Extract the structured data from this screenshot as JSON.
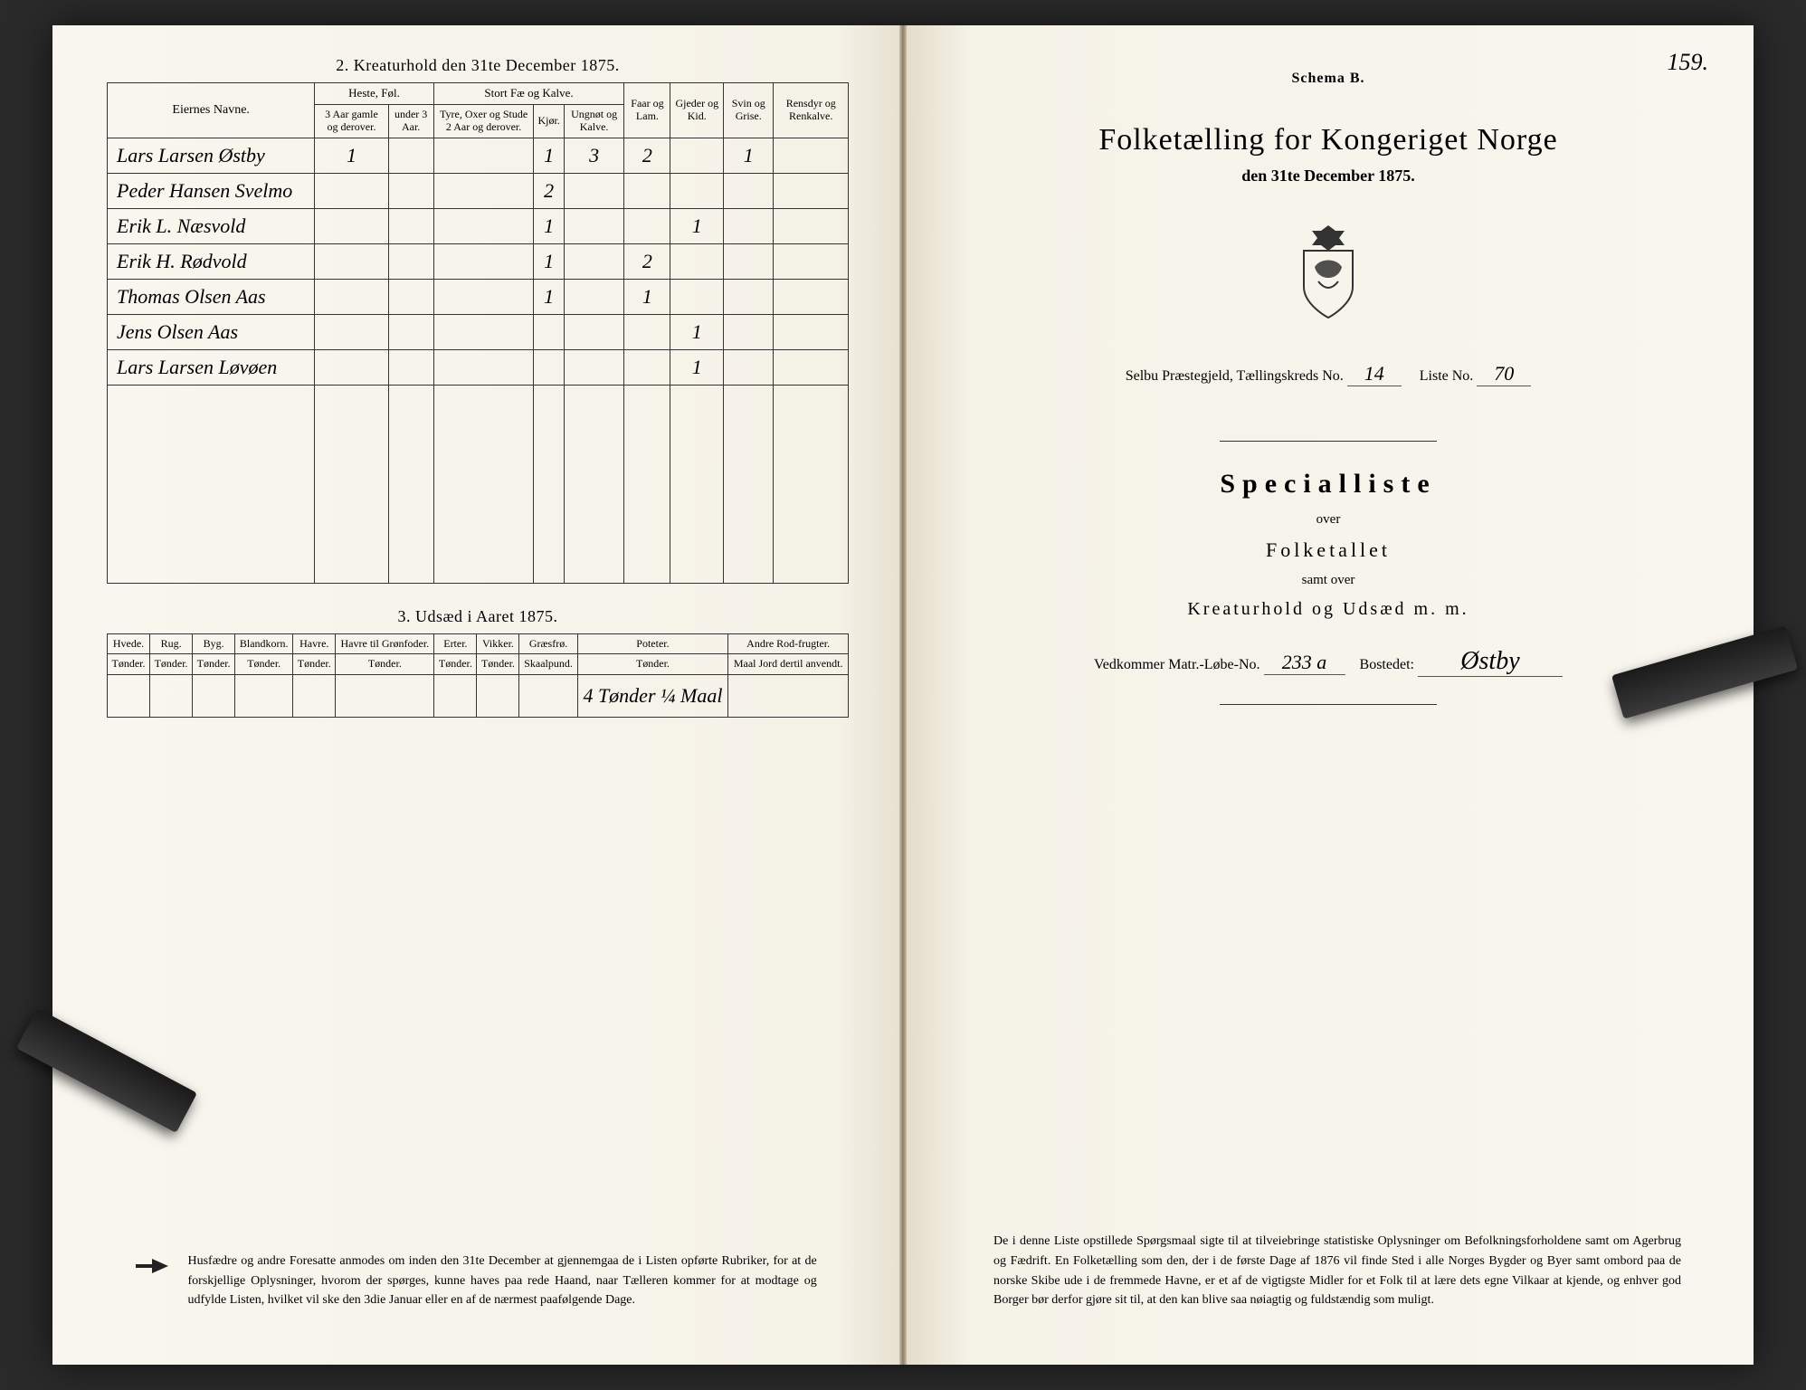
{
  "left": {
    "kreatur_title": "2.  Kreaturhold den 31te December 1875.",
    "udsaed_title": "3.  Udsæd i Aaret 1875.",
    "kreatur": {
      "col_names": "Eiernes Navne.",
      "group_heste": "Heste, Føl.",
      "group_stort": "Stort Fæ og Kalve.",
      "col_heste_a": "3 Aar gamle og derover.",
      "col_heste_b": "under 3 Aar.",
      "col_stort_a": "Tyre, Oxer og Stude 2 Aar og derover.",
      "col_stort_b": "Kjør.",
      "col_stort_c": "Ungnøt og Kalve.",
      "col_faar": "Faar og Lam.",
      "col_gjed": "Gjeder og Kid.",
      "col_svin": "Svin og Grise.",
      "col_rens": "Rensdyr og Renkalve.",
      "rows": [
        {
          "name": "Lars Larsen Østby",
          "heste_a": "1",
          "heste_b": "",
          "stort_a": "",
          "stort_b": "1",
          "stort_c": "3",
          "faar": "2",
          "gjed": "",
          "svin": "1",
          "rens": ""
        },
        {
          "name": "Peder Hansen Svelmo",
          "heste_a": "",
          "heste_b": "",
          "stort_a": "",
          "stort_b": "2",
          "stort_c": "",
          "faar": "",
          "gjed": "",
          "svin": "",
          "rens": ""
        },
        {
          "name": "Erik L. Næsvold",
          "heste_a": "",
          "heste_b": "",
          "stort_a": "",
          "stort_b": "1",
          "stort_c": "",
          "faar": "",
          "gjed": "1",
          "svin": "",
          "rens": ""
        },
        {
          "name": "Erik H. Rødvold",
          "heste_a": "",
          "heste_b": "",
          "stort_a": "",
          "stort_b": "1",
          "stort_c": "",
          "faar": "2",
          "gjed": "",
          "svin": "",
          "rens": ""
        },
        {
          "name": "Thomas Olsen Aas",
          "heste_a": "",
          "heste_b": "",
          "stort_a": "",
          "stort_b": "1",
          "stort_c": "",
          "faar": "1",
          "gjed": "",
          "svin": "",
          "rens": ""
        },
        {
          "name": "Jens Olsen Aas",
          "heste_a": "",
          "heste_b": "",
          "stort_a": "",
          "stort_b": "",
          "stort_c": "",
          "faar": "",
          "gjed": "1",
          "svin": "",
          "rens": ""
        },
        {
          "name": "Lars Larsen Løvøen",
          "heste_a": "",
          "heste_b": "",
          "stort_a": "",
          "stort_b": "",
          "stort_c": "",
          "faar": "",
          "gjed": "1",
          "svin": "",
          "rens": ""
        }
      ]
    },
    "udsaed": {
      "cols": [
        "Hvede.",
        "Rug.",
        "Byg.",
        "Blandkorn.",
        "Havre.",
        "Havre til Grønfoder.",
        "Erter.",
        "Vikker.",
        "Græsfrø.",
        "Poteter.",
        "Andre Rod-frugter."
      ],
      "unit": "Tønder.",
      "unit_graes": "Skaalpund.",
      "unit_rod": "Maal Jord dertil anvendt.",
      "poteter_value": "4 Tønder ¼ Maal"
    },
    "footnote": "Husfædre og andre Foresatte anmodes om inden den 31te December at gjennemgaa de i Listen opførte Rubriker, for at de forskjellige Oplysninger, hvorom der spørges, kunne haves paa rede Haand, naar Tælleren kommer for at modtage og udfylde Listen, hvilket vil ske den 3die Januar eller en af de nærmest paafølgende Dage."
  },
  "right": {
    "page_no": "159.",
    "schema": "Schema B.",
    "main_title": "Folketælling for Kongeriget Norge",
    "subtitle": "den 31te December 1875.",
    "meta_prefix": "Selbu Præstegjeld,  Tællingskreds No.",
    "kreds_no": "14",
    "liste_label": "Liste No.",
    "liste_no": "70",
    "specialliste": "Specialliste",
    "over": "over",
    "folketallet": "Folketallet",
    "samt_over": "samt over",
    "kreatur_line": "Kreaturhold og Udsæd m. m.",
    "vedkommer_label": "Vedkommer Matr.-Løbe-No.",
    "matr_no": "233 a",
    "bostedet_label": "Bostedet:",
    "bostedet": "Østby",
    "footnote": "De i denne Liste opstillede Spørgsmaal sigte til at tilveiebringe statistiske Oplysninger om Befolkningsforholdene samt om Agerbrug og Fædrift.  En Folketælling som den, der i de første Dage af 1876 vil finde Sted i alle Norges Bygder og Byer samt ombord paa de norske Skibe ude i de fremmede Havne, er et af de vigtigste Midler for et Folk til at lære dets egne Vilkaar at kjende, og enhver god Borger bør derfor gjøre sit til, at den kan blive saa nøiagtig og fuldstændig som muligt."
  },
  "colors": {
    "paper": "#f8f6ee",
    "ink": "#222222",
    "rule": "#333333"
  }
}
